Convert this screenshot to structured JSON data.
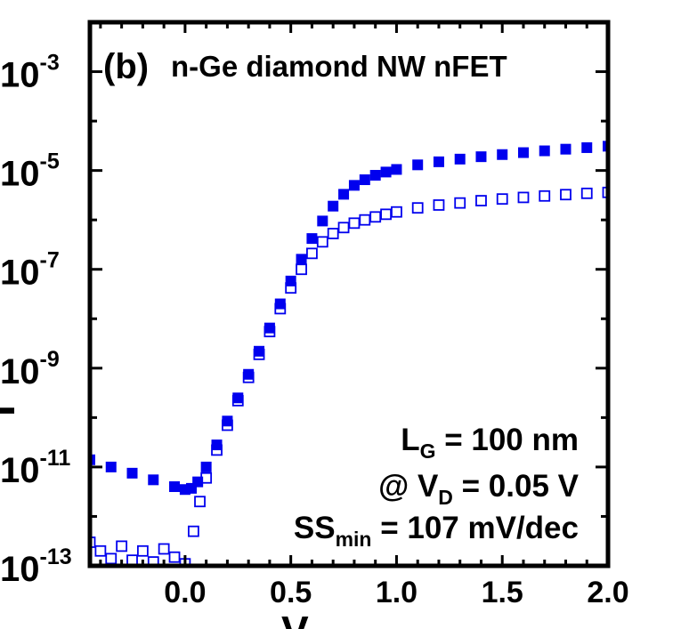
{
  "chart_data": {
    "type": "scatter",
    "panel_label": "(b)",
    "title": "n-Ge diamond NW nFET",
    "xlabel": "V",
    "ylabel": "I",
    "x_scale": "linear",
    "y_scale": "log",
    "xlim": [
      -0.45,
      2.0
    ],
    "ylim": [
      1e-13,
      0.01
    ],
    "x_ticks": [
      0.0,
      0.5,
      1.0,
      1.5,
      2.0
    ],
    "x_tick_labels": [
      "0.0",
      "0.5",
      "1.0",
      "1.5",
      "2.0"
    ],
    "y_ticks": [
      {
        "value": 1e-13,
        "base": "10",
        "exp": "-13"
      },
      {
        "value": 1e-11,
        "base": "10",
        "exp": "-11"
      },
      {
        "value": 1e-09,
        "base": "10",
        "exp": "-9"
      },
      {
        "value": 1e-07,
        "base": "10",
        "exp": "-7"
      },
      {
        "value": 1e-05,
        "base": "10",
        "exp": "-5"
      },
      {
        "value": 0.001,
        "base": "10",
        "exp": "-3"
      }
    ],
    "annotations": [
      {
        "main": "L",
        "sub": "G",
        "rest": " = 100 nm"
      },
      {
        "main": "@ V",
        "sub": "D",
        "rest": " = 0.05 V"
      },
      {
        "main": "SS",
        "sub": "min",
        "rest": " = 107 mV/dec"
      }
    ],
    "series": [
      {
        "marker": "filled-square",
        "color": "#0000ee",
        "x": [
          -0.45,
          -0.35,
          -0.25,
          -0.15,
          -0.05,
          0.0,
          0.03,
          0.06,
          0.1,
          0.15,
          0.2,
          0.25,
          0.3,
          0.35,
          0.4,
          0.45,
          0.5,
          0.55,
          0.6,
          0.65,
          0.7,
          0.75,
          0.8,
          0.85,
          0.9,
          0.95,
          1.0,
          1.1,
          1.2,
          1.3,
          1.4,
          1.5,
          1.6,
          1.7,
          1.8,
          1.9,
          2.0
        ],
        "y": [
          1.4e-11,
          1e-11,
          7.5e-12,
          5.5e-12,
          4e-12,
          3.5e-12,
          3.7e-12,
          5e-12,
          1e-11,
          2.8e-11,
          8.5e-11,
          2.5e-10,
          7.5e-10,
          2.2e-09,
          6.5e-09,
          2e-08,
          5.8e-08,
          1.6e-07,
          4.2e-07,
          9.5e-07,
          1.9e-06,
          3.3e-06,
          5e-06,
          6.5e-06,
          8e-06,
          9.3e-06,
          1.05e-05,
          1.3e-05,
          1.5e-05,
          1.7e-05,
          1.9e-05,
          2.1e-05,
          2.3e-05,
          2.5e-05,
          2.7e-05,
          2.9e-05,
          3.1e-05
        ]
      },
      {
        "marker": "open-square",
        "color": "#0000ee",
        "x": [
          -0.45,
          -0.4,
          -0.35,
          -0.3,
          -0.25,
          -0.2,
          -0.15,
          -0.1,
          -0.05,
          0.0,
          0.04,
          0.07,
          0.1,
          0.15,
          0.2,
          0.25,
          0.3,
          0.35,
          0.4,
          0.45,
          0.5,
          0.55,
          0.6,
          0.65,
          0.7,
          0.75,
          0.8,
          0.85,
          0.9,
          0.95,
          1.0,
          1.1,
          1.2,
          1.3,
          1.4,
          1.5,
          1.6,
          1.7,
          1.8,
          1.9,
          2.0
        ],
        "y": [
          3e-13,
          2e-13,
          1.4e-13,
          2.5e-13,
          1.3e-13,
          2e-13,
          1.2e-13,
          2.2e-13,
          1.5e-13,
          1.1e-13,
          5e-13,
          2e-12,
          6e-12,
          2.2e-11,
          7e-11,
          2.2e-10,
          6.5e-10,
          1.9e-09,
          5.5e-09,
          1.6e-08,
          4.2e-08,
          1e-07,
          2.1e-07,
          3.6e-07,
          5.3e-07,
          7e-07,
          8.6e-07,
          1e-06,
          1.15e-06,
          1.3e-06,
          1.45e-06,
          1.75e-06,
          2e-06,
          2.2e-06,
          2.45e-06,
          2.65e-06,
          2.85e-06,
          3.05e-06,
          3.25e-06,
          3.45e-06,
          3.6e-06
        ]
      }
    ]
  }
}
